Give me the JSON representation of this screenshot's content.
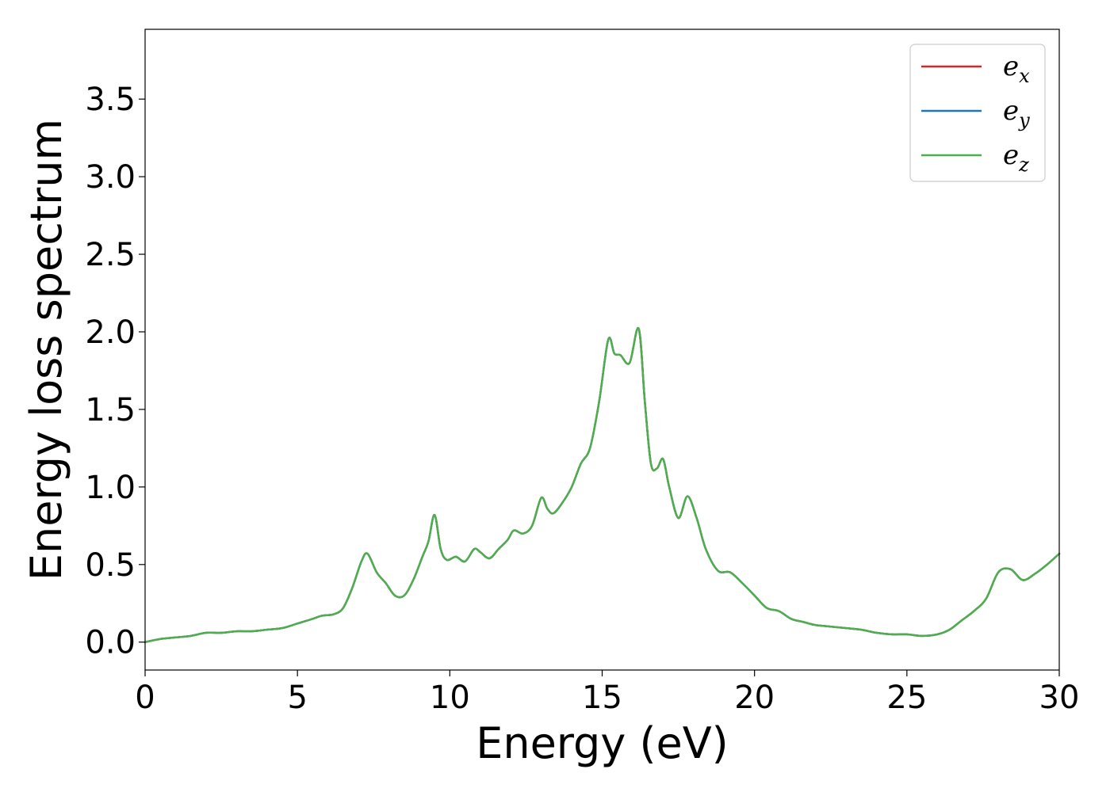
{
  "chart_data": {
    "type": "line",
    "title": "",
    "xlabel": "Energy (eV)",
    "ylabel": "Energy loss spectrum",
    "xlim": [
      0,
      30
    ],
    "ylim": [
      -0.18,
      3.95
    ],
    "xticks": [
      0,
      5,
      10,
      15,
      20,
      25,
      30
    ],
    "xtick_labels": [
      "0",
      "5",
      "10",
      "15",
      "20",
      "25",
      "30"
    ],
    "yticks": [
      0.0,
      0.5,
      1.0,
      1.5,
      2.0,
      2.5,
      3.0,
      3.5
    ],
    "ytick_labels": [
      "0.0",
      "0.5",
      "1.0",
      "1.5",
      "2.0",
      "2.5",
      "3.0",
      "3.5"
    ],
    "grid": false,
    "legend_position": "top-right",
    "legend": [
      {
        "base": "e",
        "sub": "x",
        "color": "#d62728"
      },
      {
        "base": "e",
        "sub": "y",
        "color": "#1f77b4"
      },
      {
        "base": "e",
        "sub": "z",
        "color": "#4daf4a"
      }
    ],
    "x": [
      0,
      0.5,
      1,
      1.5,
      2,
      2.5,
      3,
      3.5,
      4,
      4.5,
      5,
      5.5,
      5.8,
      6.2,
      6.5,
      6.8,
      7.1,
      7.3,
      7.6,
      7.9,
      8.2,
      8.5,
      8.8,
      9.1,
      9.3,
      9.5,
      9.7,
      9.9,
      10.2,
      10.5,
      10.8,
      11.0,
      11.3,
      11.6,
      11.9,
      12.1,
      12.4,
      12.7,
      13.0,
      13.2,
      13.4,
      13.7,
      14.0,
      14.3,
      14.6,
      14.9,
      15.2,
      15.4,
      15.6,
      15.9,
      16.2,
      16.4,
      16.6,
      16.8,
      17.0,
      17.2,
      17.5,
      17.8,
      18.1,
      18.4,
      18.8,
      19.2,
      19.6,
      20.0,
      20.4,
      20.8,
      21.2,
      21.6,
      22.0,
      22.5,
      23.0,
      23.5,
      24.0,
      24.5,
      25.0,
      25.5,
      26.0,
      26.4,
      26.8,
      27.2,
      27.6,
      28.0,
      28.4,
      28.8,
      29.2,
      29.6,
      30.0
    ],
    "series": [
      {
        "values": [
          0.0,
          0.02,
          0.03,
          0.04,
          0.06,
          0.06,
          0.07,
          0.07,
          0.08,
          0.09,
          0.12,
          0.15,
          0.17,
          0.18,
          0.22,
          0.35,
          0.52,
          0.57,
          0.45,
          0.38,
          0.3,
          0.3,
          0.4,
          0.55,
          0.65,
          0.82,
          0.6,
          0.53,
          0.55,
          0.52,
          0.6,
          0.58,
          0.54,
          0.6,
          0.66,
          0.72,
          0.7,
          0.75,
          0.93,
          0.86,
          0.83,
          0.9,
          1.0,
          1.15,
          1.25,
          1.55,
          1.95,
          1.86,
          1.85,
          1.8,
          2.02,
          1.55,
          1.15,
          1.12,
          1.18,
          1.0,
          0.8,
          0.94,
          0.8,
          0.6,
          0.46,
          0.45,
          0.38,
          0.3,
          0.22,
          0.2,
          0.15,
          0.13,
          0.11,
          0.1,
          0.09,
          0.08,
          0.06,
          0.05,
          0.05,
          0.04,
          0.05,
          0.08,
          0.14,
          0.2,
          0.28,
          0.45,
          0.47,
          0.4,
          0.44,
          0.5,
          0.57
        ]
      },
      {
        "values": [
          0.0,
          0.02,
          0.03,
          0.04,
          0.06,
          0.06,
          0.07,
          0.07,
          0.08,
          0.09,
          0.12,
          0.15,
          0.17,
          0.18,
          0.22,
          0.35,
          0.52,
          0.57,
          0.45,
          0.38,
          0.3,
          0.3,
          0.4,
          0.55,
          0.65,
          0.82,
          0.6,
          0.53,
          0.55,
          0.52,
          0.6,
          0.58,
          0.54,
          0.6,
          0.66,
          0.72,
          0.7,
          0.75,
          0.93,
          0.86,
          0.83,
          0.9,
          1.0,
          1.15,
          1.25,
          1.55,
          1.95,
          1.86,
          1.85,
          1.8,
          2.02,
          1.55,
          1.15,
          1.12,
          1.18,
          1.0,
          0.8,
          0.94,
          0.8,
          0.6,
          0.46,
          0.45,
          0.38,
          0.3,
          0.22,
          0.2,
          0.15,
          0.13,
          0.11,
          0.1,
          0.09,
          0.08,
          0.06,
          0.05,
          0.05,
          0.04,
          0.05,
          0.08,
          0.14,
          0.2,
          0.28,
          0.45,
          0.47,
          0.4,
          0.44,
          0.5,
          0.57
        ]
      },
      {
        "values": [
          0.0,
          0.02,
          0.03,
          0.04,
          0.06,
          0.06,
          0.07,
          0.07,
          0.08,
          0.09,
          0.12,
          0.15,
          0.17,
          0.18,
          0.22,
          0.35,
          0.52,
          0.57,
          0.45,
          0.38,
          0.3,
          0.3,
          0.4,
          0.55,
          0.65,
          0.82,
          0.6,
          0.53,
          0.55,
          0.52,
          0.6,
          0.58,
          0.54,
          0.6,
          0.66,
          0.72,
          0.7,
          0.75,
          0.93,
          0.86,
          0.83,
          0.9,
          1.0,
          1.15,
          1.25,
          1.55,
          1.95,
          1.86,
          1.85,
          1.8,
          2.02,
          1.55,
          1.15,
          1.12,
          1.18,
          1.0,
          0.8,
          0.94,
          0.8,
          0.6,
          0.46,
          0.45,
          0.38,
          0.3,
          0.22,
          0.2,
          0.15,
          0.13,
          0.11,
          0.1,
          0.09,
          0.08,
          0.06,
          0.05,
          0.05,
          0.04,
          0.05,
          0.08,
          0.14,
          0.2,
          0.28,
          0.45,
          0.47,
          0.4,
          0.44,
          0.5,
          0.57
        ]
      }
    ]
  }
}
